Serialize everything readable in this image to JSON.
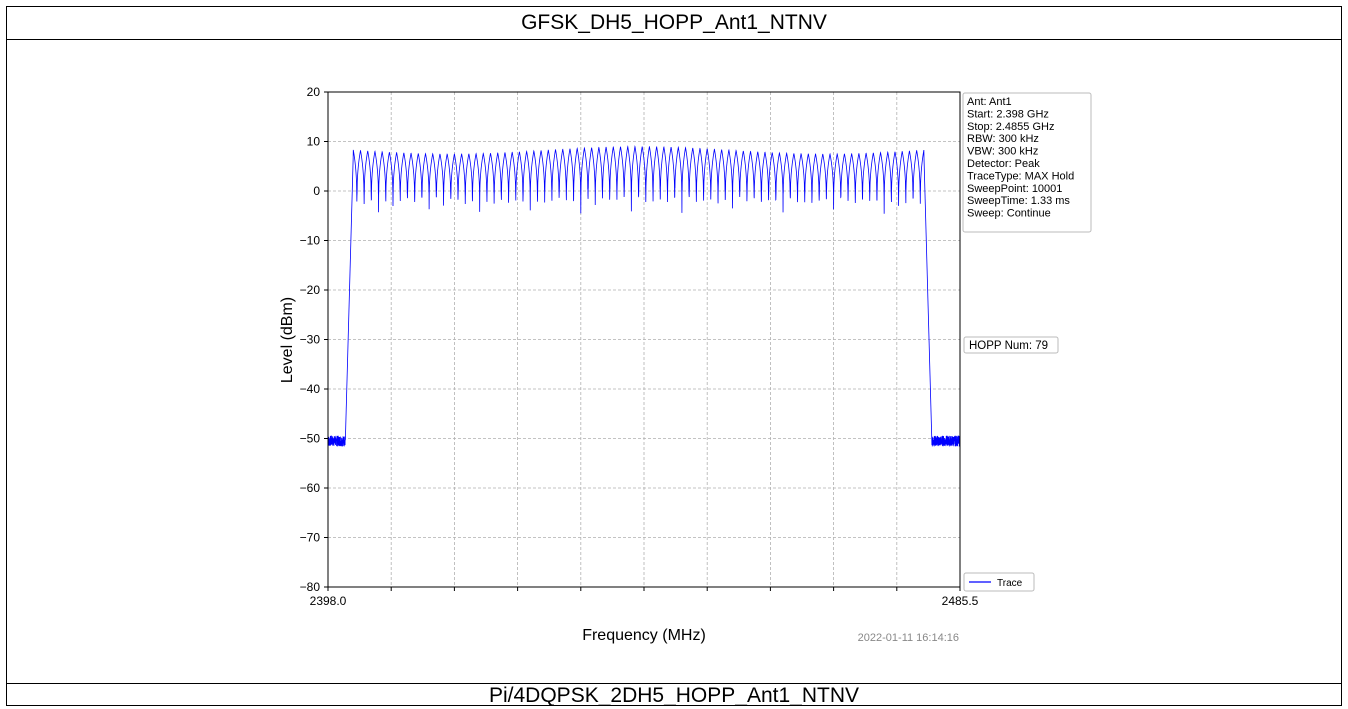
{
  "header_top": "GFSK_DH5_HOPP_Ant1_NTNV",
  "header_bottom": "Pi/4DQPSK_2DH5_HOPP_Ant1_NTNV",
  "timestamp": "2022-01-11 16:14:16",
  "info_box": [
    "Ant: Ant1",
    "Start: 2.398 GHz",
    "Stop: 2.4855 GHz",
    "RBW: 300 kHz",
    "VBW: 300 kHz",
    "Detector: Peak",
    "TraceType: MAX Hold",
    "SweepPoint: 10001",
    "SweepTime: 1.33 ms",
    "Sweep: Continue"
  ],
  "hopp_label": "HOPP Num: 79",
  "colors": {
    "trace": "#0000ff",
    "grid": "#b0b0b0"
  },
  "chart_data": {
    "type": "line",
    "xlabel": "Frequency (MHz)",
    "ylabel": "Level (dBm)",
    "xlim": [
      2398.0,
      2485.5
    ],
    "ylim": [
      -80,
      20
    ],
    "x_tick_labels": [
      "2398.0",
      "2485.5"
    ],
    "y_ticks": [
      20,
      10,
      0,
      -10,
      -20,
      -30,
      -40,
      -50,
      -60,
      -70,
      -80
    ],
    "y_tick_labels": [
      "20",
      "10",
      "0",
      "−10",
      "−20",
      "−30",
      "−40",
      "−50",
      "−60",
      "−70",
      "−80"
    ],
    "grid": true,
    "legend": {
      "position": "bottom-right",
      "entries": [
        "Trace"
      ]
    },
    "series": [
      {
        "name": "Trace",
        "hop_channels": 79,
        "first_channel_mhz": 2402,
        "channel_spacing_mhz": 1,
        "peak_dbm_range": [
          7.5,
          9.0
        ],
        "trough_dbm": -3.5,
        "noise_floor_dbm": -50.5
      }
    ]
  }
}
